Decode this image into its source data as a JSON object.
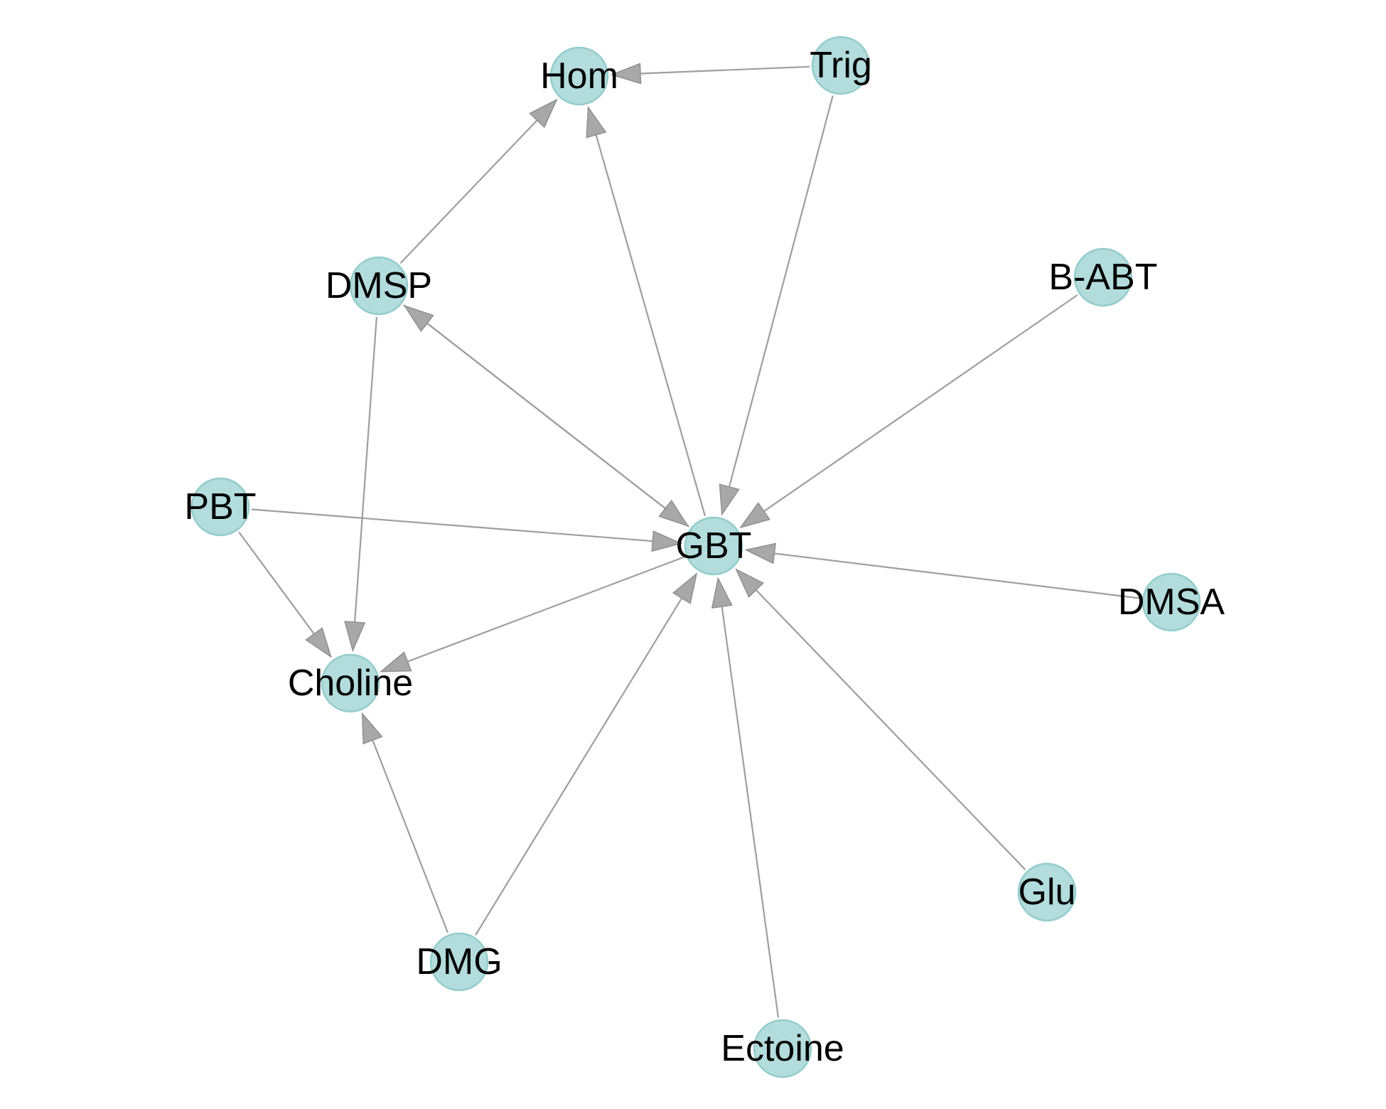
{
  "diagram": {
    "type": "directed-graph",
    "colors": {
      "node_fill": "#b3dcdc",
      "node_stroke": "#94cccc",
      "edge": "#9e9e9e",
      "arrowhead": "#a8a8a8",
      "label": "#000000",
      "background": "#ffffff"
    },
    "nodes": [
      {
        "id": "Hom",
        "label": "Hom"
      },
      {
        "id": "Trig",
        "label": "Trig"
      },
      {
        "id": "DMSP",
        "label": "DMSP"
      },
      {
        "id": "B-ABT",
        "label": "B-ABT"
      },
      {
        "id": "PBT",
        "label": "PBT"
      },
      {
        "id": "GBT",
        "label": "GBT"
      },
      {
        "id": "DMSA",
        "label": "DMSA"
      },
      {
        "id": "Choline",
        "label": "Choline"
      },
      {
        "id": "Glu",
        "label": "Glu"
      },
      {
        "id": "DMG",
        "label": "DMG"
      },
      {
        "id": "Ectoine",
        "label": "Ectoine"
      }
    ],
    "edges": [
      {
        "from": "Trig",
        "to": "Hom"
      },
      {
        "from": "DMSP",
        "to": "Hom"
      },
      {
        "from": "GBT",
        "to": "Hom"
      },
      {
        "from": "Trig",
        "to": "GBT"
      },
      {
        "from": "B-ABT",
        "to": "GBT"
      },
      {
        "from": "DMSP",
        "to": "GBT"
      },
      {
        "from": "GBT",
        "to": "DMSP"
      },
      {
        "from": "PBT",
        "to": "GBT"
      },
      {
        "from": "DMSA",
        "to": "GBT"
      },
      {
        "from": "DMG",
        "to": "GBT"
      },
      {
        "from": "Ectoine",
        "to": "GBT"
      },
      {
        "from": "Glu",
        "to": "GBT"
      },
      {
        "from": "DMSP",
        "to": "Choline"
      },
      {
        "from": "PBT",
        "to": "Choline"
      },
      {
        "from": "GBT",
        "to": "Choline"
      },
      {
        "from": "DMG",
        "to": "Choline"
      }
    ]
  }
}
